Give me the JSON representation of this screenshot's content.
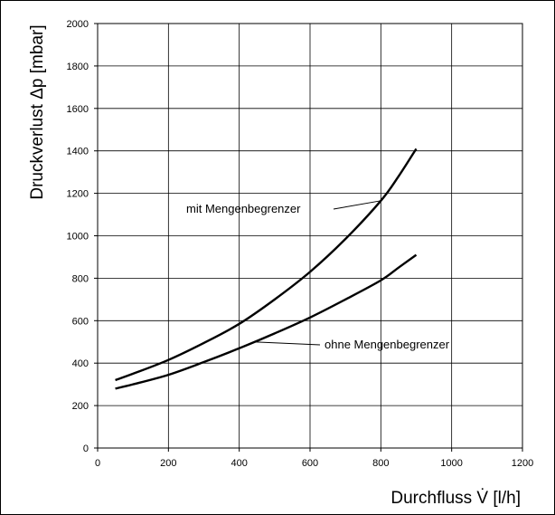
{
  "chart_data": {
    "type": "line",
    "title": "",
    "xlabel": "Durchfluss V̇ [l/h]",
    "ylabel": "Druckverlust Δp [mbar]",
    "xlim": [
      0,
      1200
    ],
    "ylim": [
      0,
      2000
    ],
    "x_ticks": [
      0,
      200,
      400,
      600,
      800,
      1000,
      1200
    ],
    "y_ticks": [
      0,
      200,
      400,
      600,
      800,
      1000,
      1200,
      1400,
      1600,
      1800,
      2000
    ],
    "grid": true,
    "legend": "none",
    "series": [
      {
        "x": [
          50,
          100,
          200,
          300,
          400,
          500,
          600,
          700,
          800,
          850,
          900
        ],
        "y": [
          320,
          350,
          415,
          495,
          585,
          700,
          830,
          985,
          1165,
          1280,
          1410
        ],
        "color": "#000000"
      },
      {
        "x": [
          50,
          100,
          200,
          300,
          400,
          500,
          600,
          700,
          800,
          850,
          900
        ],
        "y": [
          280,
          300,
          345,
          405,
          470,
          540,
          615,
          700,
          790,
          850,
          910
        ],
        "color": "#000000"
      }
    ],
    "annotations": [
      {
        "text": "mit Mengenbegrenzer",
        "series_index": 0,
        "point_x": 800,
        "point_y": 1165
      },
      {
        "text": "ohne Mengenbegrenzer",
        "series_index": 1,
        "point_x": 440,
        "point_y": 500
      }
    ]
  }
}
